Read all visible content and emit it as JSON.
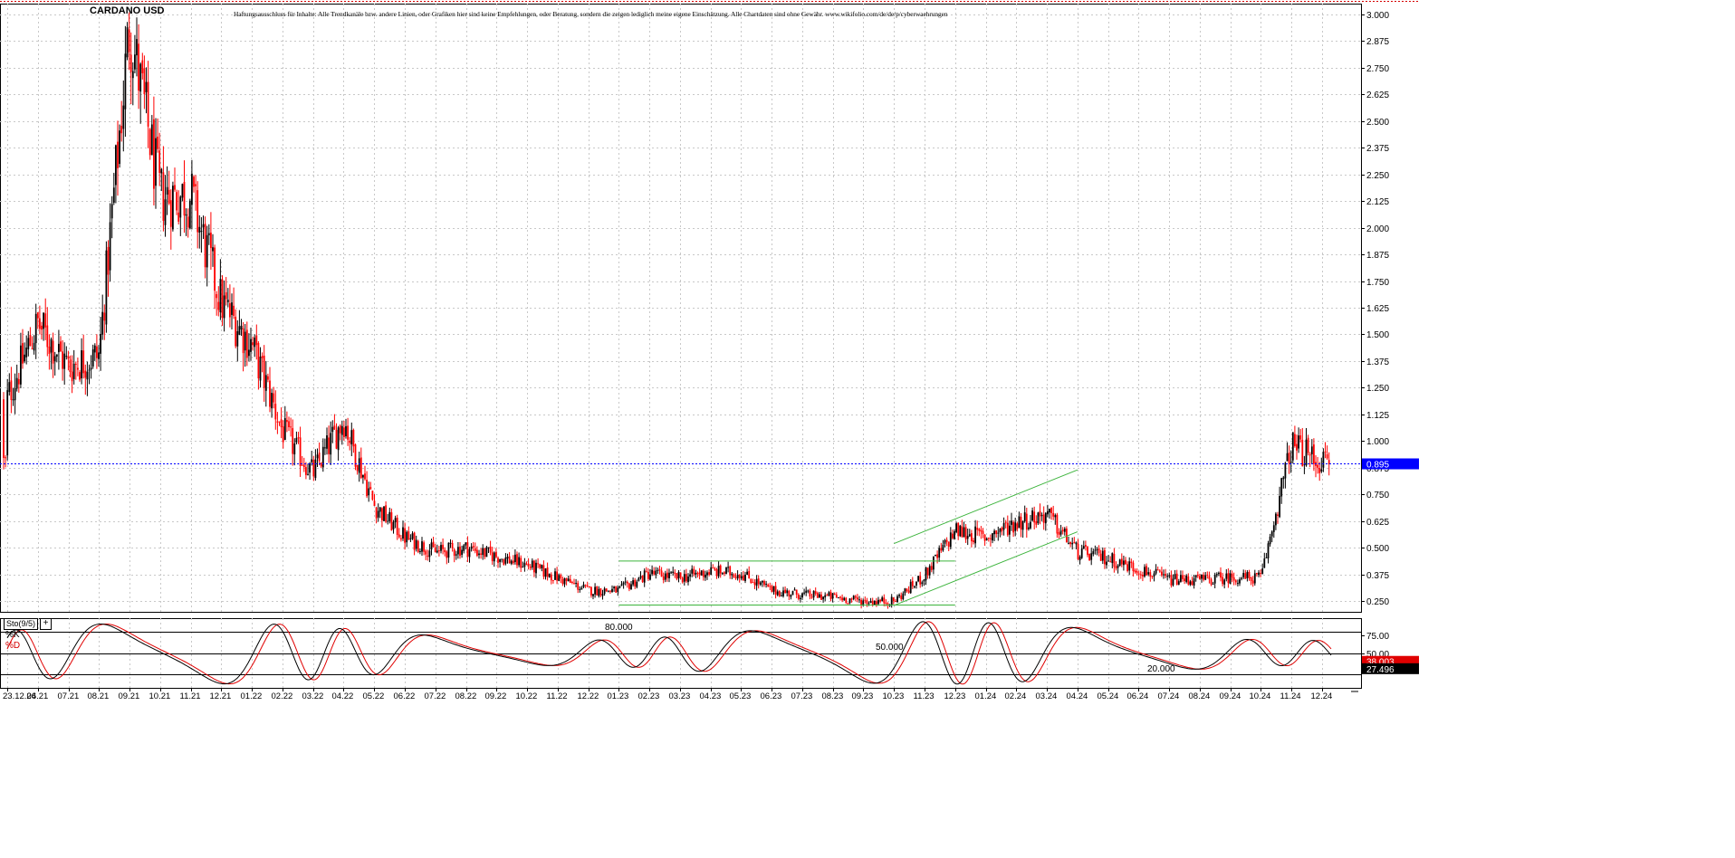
{
  "title": "CARDANO USD",
  "disclaimer": "Haftungsausschluss für Inhalte: Alle Trendkanäle bzw. andere Linien, oder Grafiken hier sind keine Empfehlungen, oder Beratung, sondern die zeigen lediglich meine eigene Einschätzung. Alle Chartdaten sind ohne Gewähr. www.wikifolio.com/de/de/p/cyberwaehrungen",
  "colors": {
    "up": "#000000",
    "down": "#ff0000",
    "trendline": "#3cb43c",
    "price_line": "#0000ff",
    "grid": "#c8c8c8",
    "stoch_k": "#000000",
    "stoch_d": "#e00000"
  },
  "chart_data": {
    "type": "candlestick",
    "title": "CARDANO USD",
    "y_axis_ticks": [
      "3.000",
      "2.875",
      "2.750",
      "2.625",
      "2.500",
      "2.375",
      "2.250",
      "2.125",
      "2.000",
      "1.875",
      "1.750",
      "1.625",
      "1.500",
      "1.375",
      "1.250",
      "1.125",
      "1.000",
      "0.875",
      "0.750",
      "0.625",
      "0.500",
      "0.375",
      "0.250"
    ],
    "y_axis_values": [
      3.0,
      2.875,
      2.75,
      2.625,
      2.5,
      2.375,
      2.25,
      2.125,
      2.0,
      1.875,
      1.75,
      1.625,
      1.5,
      1.375,
      1.25,
      1.125,
      1.0,
      0.875,
      0.75,
      0.625,
      0.5,
      0.375,
      0.25
    ],
    "ylim": [
      0.2,
      3.05
    ],
    "x_axis_ticks": [
      "23.12.24",
      "06.21",
      "07.21",
      "08.21",
      "09.21",
      "10.21",
      "11.21",
      "12.21",
      "01.22",
      "02.22",
      "03.22",
      "04.22",
      "05.22",
      "06.22",
      "07.22",
      "08.22",
      "09.22",
      "10.22",
      "11.22",
      "12.22",
      "01.23",
      "02.23",
      "03.23",
      "04.23",
      "05.23",
      "06.23",
      "07.23",
      "08.23",
      "09.23",
      "10.23",
      "11.23",
      "12.23",
      "01.24",
      "02.24",
      "03.24",
      "04.24",
      "05.24",
      "06.24",
      "07.24",
      "08.24",
      "09.24",
      "10.24",
      "11.24",
      "12.24"
    ],
    "current_price": {
      "value": 0.895,
      "label": "0.895"
    },
    "price_path_x": [
      "23.12.24",
      "06.21",
      "07.21",
      "08.21",
      "09.21",
      "10.21",
      "11.21",
      "12.21",
      "01.22",
      "02.22",
      "03.22",
      "04.22",
      "05.22",
      "06.22",
      "07.22",
      "08.22",
      "09.22",
      "10.22",
      "11.22",
      "12.22",
      "01.23",
      "02.23",
      "03.23",
      "04.23",
      "05.23",
      "06.23",
      "07.23",
      "08.23",
      "09.23",
      "10.23",
      "11.23",
      "12.23",
      "01.24",
      "02.24",
      "03.24",
      "04.24",
      "05.24",
      "06.24",
      "07.24",
      "08.24",
      "09.24",
      "10.24",
      "11.24",
      "12.24"
    ],
    "price_path": [
      1.2,
      1.55,
      1.35,
      1.4,
      2.95,
      2.15,
      2.15,
      1.65,
      1.45,
      1.05,
      0.85,
      1.1,
      0.7,
      0.55,
      0.48,
      0.5,
      0.46,
      0.42,
      0.36,
      0.3,
      0.3,
      0.38,
      0.36,
      0.39,
      0.38,
      0.3,
      0.28,
      0.27,
      0.25,
      0.25,
      0.37,
      0.58,
      0.55,
      0.62,
      0.66,
      0.48,
      0.45,
      0.4,
      0.35,
      0.35,
      0.36,
      0.36,
      0.98,
      0.9
    ],
    "trendlines": [
      {
        "from": {
          "x": "01.23",
          "y": 0.438
        },
        "to": {
          "x": "12.23",
          "y": 0.438
        }
      },
      {
        "from": {
          "x": "01.23",
          "y": 0.232
        },
        "to": {
          "x": "12.23",
          "y": 0.232
        }
      },
      {
        "from": {
          "x": "10.23",
          "y": 0.52
        },
        "to": {
          "x": "04.24",
          "y": 0.865
        }
      },
      {
        "from": {
          "x": "10.23",
          "y": 0.23
        },
        "to": {
          "x": "04.24",
          "y": 0.575
        }
      }
    ]
  },
  "oscillator": {
    "name": "Sto(9/5)",
    "plus_icon": "+",
    "k_label": "%K",
    "d_label": "%D",
    "levels": [
      {
        "value": 80,
        "label": "80.000"
      },
      {
        "value": 50,
        "label": "50.000"
      },
      {
        "value": 20,
        "label": "20.000"
      }
    ],
    "ticks": [
      "75.00",
      "50.00"
    ],
    "current_k": {
      "value": 38.003,
      "label": "38.003"
    },
    "current_d": {
      "value": 27.496,
      "label": "27.496"
    }
  }
}
